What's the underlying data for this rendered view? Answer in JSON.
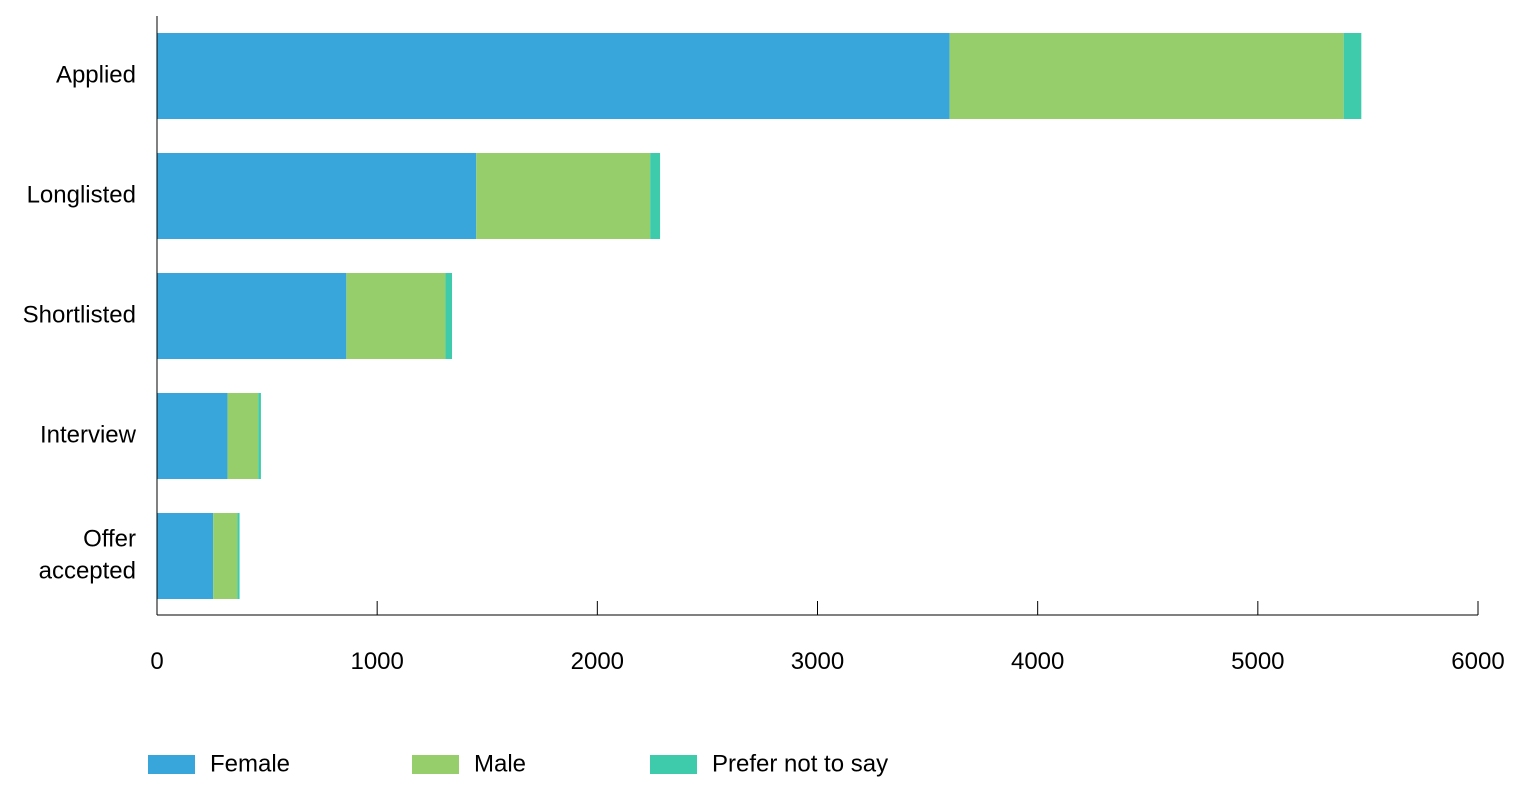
{
  "chart_data": {
    "type": "bar",
    "orientation": "horizontal",
    "stacked": true,
    "title": "",
    "xlabel": "",
    "ylabel": "",
    "categories": [
      "Applied",
      "Longlisted",
      "Shortlisted",
      "Interview",
      "Offer accepted"
    ],
    "category_lines": [
      [
        "Applied"
      ],
      [
        "Longlisted"
      ],
      [
        "Shortlisted"
      ],
      [
        "Interview"
      ],
      [
        "Offer",
        "accepted"
      ]
    ],
    "series": [
      {
        "name": "Female",
        "color": "#38a6da",
        "values": [
          3600,
          1450,
          860,
          320,
          255
        ]
      },
      {
        "name": "Male",
        "color": "#96ce6b",
        "values": [
          1790,
          790,
          450,
          140,
          110
        ]
      },
      {
        "name": "Prefer not to say",
        "color": "#3ecbac",
        "values": [
          80,
          45,
          30,
          12,
          10
        ]
      }
    ],
    "xlim": [
      0,
      6000
    ],
    "xticks": [
      0,
      1000,
      2000,
      3000,
      4000,
      5000,
      6000
    ],
    "grid": false,
    "legend_position": "bottom"
  }
}
